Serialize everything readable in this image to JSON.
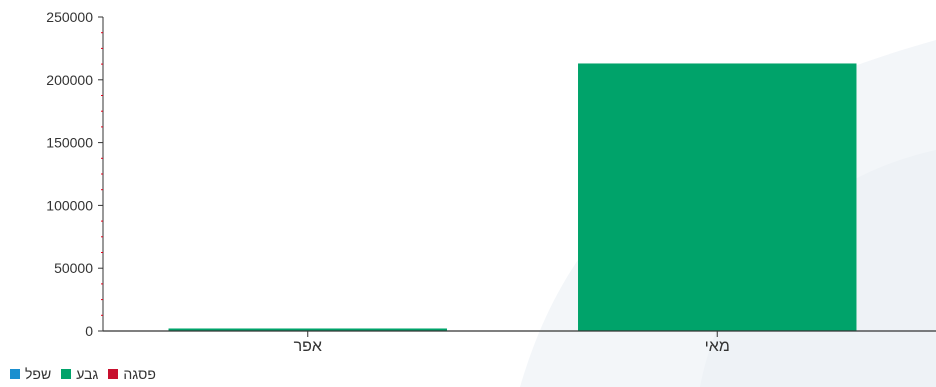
{
  "chart_data": {
    "type": "bar",
    "categories": [
      "אפר",
      "מאי"
    ],
    "series": [
      {
        "name": "שפל",
        "color": "#1a8fcf",
        "values": [
          0,
          0
        ]
      },
      {
        "name": "גבע",
        "color": "#00a36a",
        "values": [
          2000,
          213000
        ]
      },
      {
        "name": "פסגה",
        "color": "#c8102e",
        "values": [
          0,
          0
        ]
      }
    ],
    "ylim": [
      0,
      250000
    ],
    "yticks": [
      "0",
      "50000",
      "100000",
      "150000",
      "200000",
      "250000"
    ],
    "grid": false,
    "legend_position": "bottom-left"
  }
}
